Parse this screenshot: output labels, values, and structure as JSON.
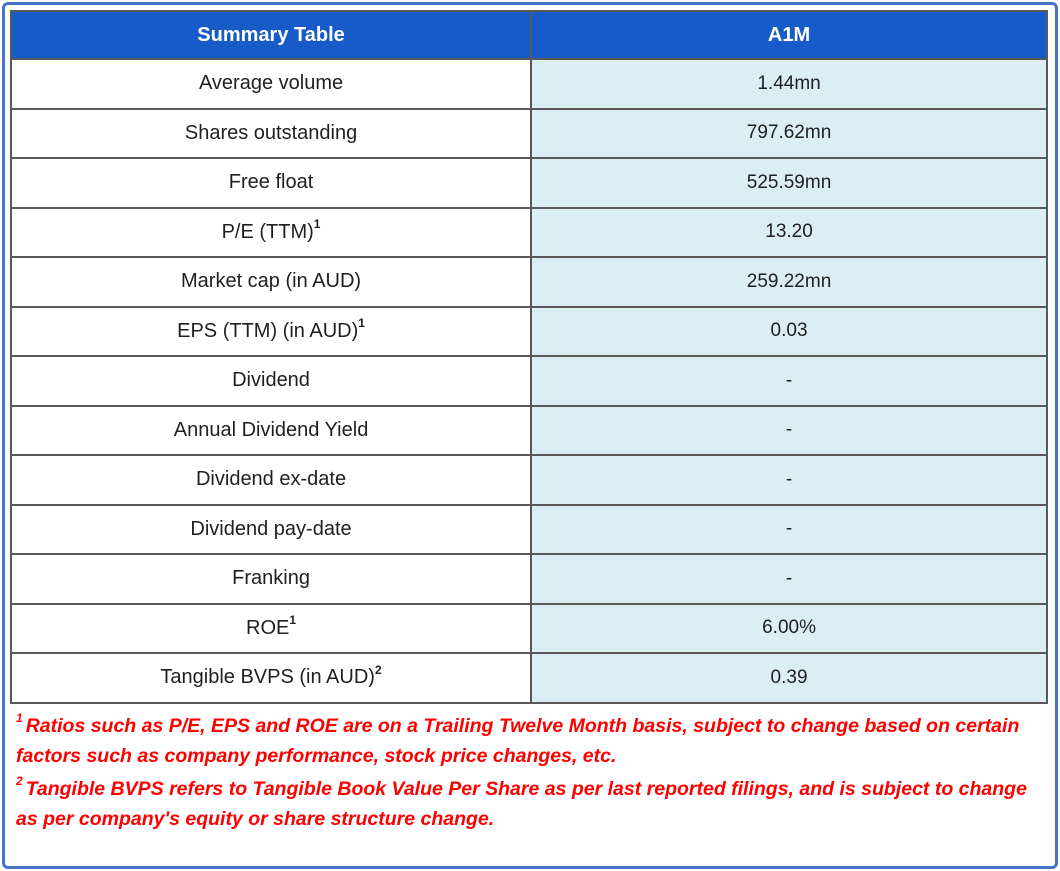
{
  "table": {
    "header": {
      "label_col": "Summary Table",
      "value_col": "A1M"
    },
    "rows": [
      {
        "label": "Average volume",
        "sup": "",
        "value": "1.44mn"
      },
      {
        "label": "Shares outstanding",
        "sup": "",
        "value": "797.62mn"
      },
      {
        "label": "Free float",
        "sup": "",
        "value": "525.59mn"
      },
      {
        "label": "P/E (TTM)",
        "sup": "1",
        "value": "13.20"
      },
      {
        "label": "Market cap (in AUD)",
        "sup": "",
        "value": "259.22mn"
      },
      {
        "label": "EPS (TTM) (in AUD)",
        "sup": "1",
        "value": "0.03"
      },
      {
        "label": "Dividend",
        "sup": "",
        "value": "-"
      },
      {
        "label": "Annual Dividend Yield",
        "sup": "",
        "value": "-"
      },
      {
        "label": "Dividend ex-date",
        "sup": "",
        "value": "-"
      },
      {
        "label": "Dividend pay-date",
        "sup": "",
        "value": "-"
      },
      {
        "label": "Franking",
        "sup": "",
        "value": "-"
      },
      {
        "label": "ROE",
        "sup": "1",
        "value": "6.00%"
      },
      {
        "label": "Tangible BVPS (in AUD)",
        "sup": "2",
        "value": "0.39"
      }
    ]
  },
  "footnotes": [
    {
      "sup": "1",
      "text": "Ratios such as P/E, EPS and ROE are on a Trailing Twelve Month basis, subject to change based on certain factors such as company performance, stock price changes, etc."
    },
    {
      "sup": "2",
      "text": "Tangible BVPS refers to Tangible Book Value Per Share as per last reported filings, and is subject to change as per company's equity or share structure change."
    }
  ],
  "colors": {
    "header_bg": "#165bc8",
    "header_text": "#ffffff",
    "value_cell_bg": "#daeef3",
    "grid_border": "#595959",
    "outer_frame": "#4573c7",
    "footnote_text": "#ff0000"
  }
}
